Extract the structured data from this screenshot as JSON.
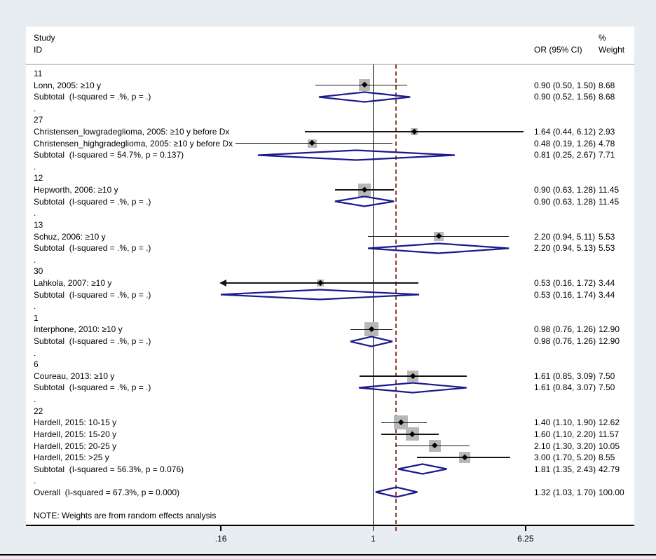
{
  "header": {
    "study_line1": "Study",
    "study_line2": "ID",
    "pct": "%",
    "weight_col": "Weight",
    "or_col": "OR (95% CI)"
  },
  "note": "NOTE: Weights are from random effects analysis",
  "colors": {
    "background": "#e7edf0",
    "panel": "#ffffff",
    "text": "#000000",
    "ci_line": "#141414",
    "marker_square": "#b8b8b8",
    "point_marker": "#000000",
    "pooled_diamond": "#1a1a8e",
    "null_line": "#000000",
    "overall_dashed_line": "#953a38",
    "header_rule": "#c9c9c9",
    "axis_line": "#000000"
  },
  "chart_data": {
    "type": "forest",
    "effect_measure": "OR",
    "x_scale": "log",
    "x_axis": {
      "range": [
        0.16,
        6.25
      ],
      "ticks": [
        0.16,
        1,
        6.25
      ],
      "tick_labels": [
        ".16",
        "1",
        "6.25"
      ]
    },
    "null_line": 1,
    "overall_or": 1.32,
    "rows": [
      {
        "kind": "group",
        "label": "11"
      },
      {
        "kind": "study",
        "label": "Lonn, 2005: ≥10 y",
        "or": 0.9,
        "lo": 0.5,
        "hi": 1.5,
        "or_text": "0.90 (0.50, 1.50)",
        "weight": "8.68",
        "weight_value": 8.68
      },
      {
        "kind": "subtotal",
        "label": "Subtotal  (I-squared = .%, p = .)",
        "or": 0.9,
        "lo": 0.52,
        "hi": 1.56,
        "or_text": "0.90 (0.52, 1.56)",
        "weight": "8.68"
      },
      {
        "kind": "dot",
        "label": "."
      },
      {
        "kind": "group",
        "label": "27"
      },
      {
        "kind": "study",
        "label": "Christensen_lowgradeglioma, 2005: ≥10 y before Dx",
        "or": 1.64,
        "lo": 0.44,
        "hi": 6.12,
        "or_text": "1.64 (0.44, 6.12)",
        "weight": "2.93",
        "weight_value": 2.93
      },
      {
        "kind": "study",
        "label": "Christensen_highgradeglioma, 2005: ≥10 y before Dx",
        "or": 0.48,
        "lo": 0.19,
        "hi": 1.26,
        "or_text": "0.48 (0.19, 1.26)",
        "weight": "4.78",
        "weight_value": 4.78
      },
      {
        "kind": "subtotal",
        "label": "Subtotal  (I-squared = 54.7%, p = 0.137)",
        "or": 0.81,
        "lo": 0.25,
        "hi": 2.67,
        "or_text": "0.81 (0.25, 2.67)",
        "weight": "7.71"
      },
      {
        "kind": "dot",
        "label": "."
      },
      {
        "kind": "group",
        "label": "12"
      },
      {
        "kind": "study",
        "label": "Hepworth, 2006: ≥10 y",
        "or": 0.9,
        "lo": 0.63,
        "hi": 1.28,
        "or_text": "0.90 (0.63, 1.28)",
        "weight": "11.45",
        "weight_value": 11.45
      },
      {
        "kind": "subtotal",
        "label": "Subtotal  (I-squared = .%, p = .)",
        "or": 0.9,
        "lo": 0.63,
        "hi": 1.28,
        "or_text": "0.90 (0.63, 1.28)",
        "weight": "11.45"
      },
      {
        "kind": "dot",
        "label": "."
      },
      {
        "kind": "group",
        "label": "13"
      },
      {
        "kind": "study",
        "label": "Schuz, 2006: ≥10 y",
        "or": 2.2,
        "lo": 0.94,
        "hi": 5.11,
        "or_text": "2.20 (0.94, 5.11)",
        "weight": "5.53",
        "weight_value": 5.53
      },
      {
        "kind": "subtotal",
        "label": "Subtotal  (I-squared = .%, p = .)",
        "or": 2.2,
        "lo": 0.94,
        "hi": 5.13,
        "or_text": "2.20 (0.94, 5.13)",
        "weight": "5.53"
      },
      {
        "kind": "dot",
        "label": "."
      },
      {
        "kind": "group",
        "label": "30"
      },
      {
        "kind": "study",
        "label": "Lahkola, 2007: ≥10 y",
        "or": 0.53,
        "lo": 0.16,
        "hi": 1.72,
        "or_text": "0.53 (0.16, 1.72)",
        "weight": "3.44",
        "weight_value": 3.44,
        "clip_left": true
      },
      {
        "kind": "subtotal",
        "label": "Subtotal  (I-squared = .%, p = .)",
        "or": 0.53,
        "lo": 0.16,
        "hi": 1.74,
        "or_text": "0.53 (0.16, 1.74)",
        "weight": "3.44"
      },
      {
        "kind": "dot",
        "label": "."
      },
      {
        "kind": "group",
        "label": "1"
      },
      {
        "kind": "study",
        "label": "Interphone, 2010: ≥10 y",
        "or": 0.98,
        "lo": 0.76,
        "hi": 1.26,
        "or_text": "0.98 (0.76, 1.26)",
        "weight": "12.90",
        "weight_value": 12.9
      },
      {
        "kind": "subtotal",
        "label": "Subtotal  (I-squared = .%, p = .)",
        "or": 0.98,
        "lo": 0.76,
        "hi": 1.26,
        "or_text": "0.98 (0.76, 1.26)",
        "weight": "12.90"
      },
      {
        "kind": "dot",
        "label": "."
      },
      {
        "kind": "group",
        "label": "6"
      },
      {
        "kind": "study",
        "label": "Coureau, 2013: ≥10 y",
        "or": 1.61,
        "lo": 0.85,
        "hi": 3.09,
        "or_text": "1.61 (0.85, 3.09)",
        "weight": "7.50",
        "weight_value": 7.5
      },
      {
        "kind": "subtotal",
        "label": "Subtotal  (I-squared = .%, p = .)",
        "or": 1.61,
        "lo": 0.84,
        "hi": 3.07,
        "or_text": "1.61 (0.84, 3.07)",
        "weight": "7.50"
      },
      {
        "kind": "dot",
        "label": "."
      },
      {
        "kind": "group",
        "label": "22"
      },
      {
        "kind": "study",
        "label": "Hardell, 2015: 10-15 y",
        "or": 1.4,
        "lo": 1.1,
        "hi": 1.9,
        "or_text": "1.40 (1.10, 1.90)",
        "weight": "12.62",
        "weight_value": 12.62
      },
      {
        "kind": "study",
        "label": "Hardell, 2015: 15-20 y",
        "or": 1.6,
        "lo": 1.1,
        "hi": 2.2,
        "or_text": "1.60 (1.10, 2.20)",
        "weight": "11.57",
        "weight_value": 11.57
      },
      {
        "kind": "study",
        "label": "Hardell, 2015: 20-25 y",
        "or": 2.1,
        "lo": 1.3,
        "hi": 3.2,
        "or_text": "2.10 (1.30, 3.20)",
        "weight": "10.05",
        "weight_value": 10.05
      },
      {
        "kind": "study",
        "label": "Hardell, 2015: >25 y",
        "or": 3.0,
        "lo": 1.7,
        "hi": 5.2,
        "or_text": "3.00 (1.70, 5.20)",
        "weight": "8.55",
        "weight_value": 8.55
      },
      {
        "kind": "subtotal",
        "label": "Subtotal  (I-squared = 56.3%, p = 0.076)",
        "or": 1.81,
        "lo": 1.35,
        "hi": 2.43,
        "or_text": "1.81 (1.35, 2.43)",
        "weight": "42.79"
      },
      {
        "kind": "dot",
        "label": "."
      },
      {
        "kind": "overall",
        "label": "Overall  (I-squared = 67.3%, p = 0.000)",
        "or": 1.32,
        "lo": 1.03,
        "hi": 1.7,
        "or_text": "1.32 (1.03, 1.70)",
        "weight": "100.00"
      },
      {
        "kind": "blank",
        "label": ""
      },
      {
        "kind": "note",
        "label": "NOTE: Weights are from random effects analysis"
      }
    ]
  }
}
